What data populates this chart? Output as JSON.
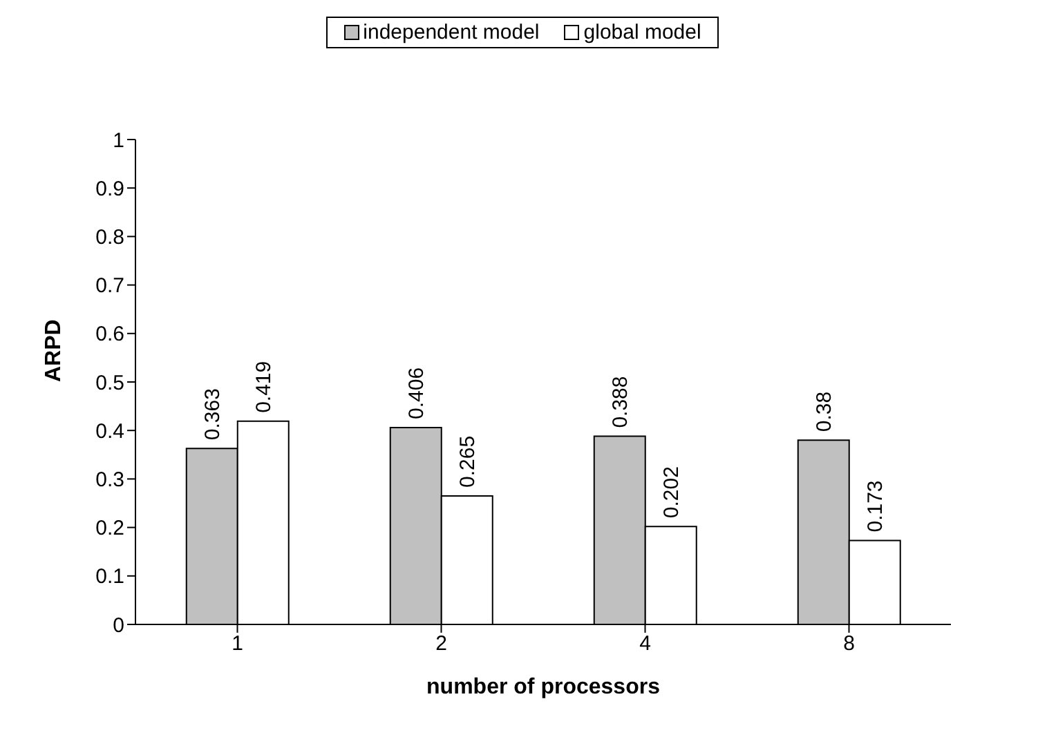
{
  "chart_data": {
    "type": "bar",
    "xlabel": "number of processors",
    "ylabel": "ARPD",
    "categories": [
      "1",
      "2",
      "4",
      "8"
    ],
    "series": [
      {
        "name": "independent model",
        "color": "#c0c0c0",
        "values": [
          0.363,
          0.406,
          0.388,
          0.38
        ]
      },
      {
        "name": "global model",
        "color": "#ffffff",
        "values": [
          0.419,
          0.265,
          0.202,
          0.173
        ]
      }
    ],
    "ylim": [
      0,
      1
    ],
    "yticks": [
      0,
      0.1,
      0.2,
      0.3,
      0.4,
      0.5,
      0.6,
      0.7,
      0.8,
      0.9,
      1
    ],
    "grid": false,
    "legend": "top",
    "data_labels": true
  }
}
